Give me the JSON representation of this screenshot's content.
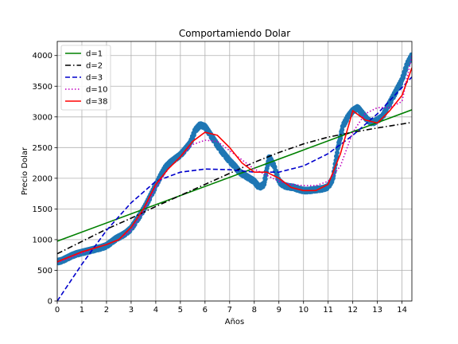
{
  "chart_data": {
    "type": "scatter",
    "title": "Comportamiendo Dolar",
    "xlabel": "Años",
    "ylabel": "Precio Dolar",
    "xlim": [
      0,
      14.4
    ],
    "ylim": [
      0,
      4230
    ],
    "xticks": [
      0,
      1,
      2,
      3,
      4,
      5,
      6,
      7,
      8,
      9,
      10,
      11,
      12,
      13,
      14
    ],
    "yticks": [
      0,
      500,
      1000,
      1500,
      2000,
      2500,
      3000,
      3500,
      4000
    ],
    "grid": true,
    "legend_position": "top-left",
    "data_series": {
      "color": "#1f77b4",
      "x": [
        0.0,
        0.2,
        0.4,
        0.6,
        0.8,
        1.0,
        1.2,
        1.4,
        1.6,
        1.8,
        2.0,
        2.2,
        2.4,
        2.6,
        2.8,
        3.0,
        3.2,
        3.4,
        3.6,
        3.8,
        4.0,
        4.2,
        4.4,
        4.6,
        4.8,
        5.0,
        5.2,
        5.4,
        5.6,
        5.8,
        6.0,
        6.2,
        6.4,
        6.6,
        6.8,
        7.0,
        7.2,
        7.4,
        7.6,
        7.8,
        8.0,
        8.2,
        8.4,
        8.6,
        8.8,
        9.0,
        9.2,
        9.4,
        9.6,
        9.8,
        10.0,
        10.2,
        10.4,
        10.6,
        10.8,
        11.0,
        11.2,
        11.4,
        11.6,
        11.8,
        12.0,
        12.2,
        12.4,
        12.6,
        12.8,
        13.0,
        13.2,
        13.4,
        13.6,
        13.8,
        14.0,
        14.2,
        14.4
      ],
      "y": [
        640,
        660,
        700,
        740,
        770,
        790,
        810,
        830,
        850,
        870,
        900,
        960,
        1020,
        1060,
        1110,
        1180,
        1300,
        1420,
        1560,
        1720,
        1880,
        2040,
        2180,
        2260,
        2320,
        2380,
        2470,
        2570,
        2780,
        2870,
        2840,
        2720,
        2600,
        2480,
        2380,
        2280,
        2200,
        2100,
        2050,
        2000,
        1950,
        1850,
        1900,
        2350,
        2200,
        1950,
        1880,
        1860,
        1850,
        1820,
        1800,
        1800,
        1810,
        1820,
        1830,
        1860,
        2000,
        2500,
        2850,
        3000,
        3100,
        3150,
        3050,
        2950,
        2900,
        2950,
        3000,
        3150,
        3300,
        3450,
        3600,
        3850,
        4000
      ]
    },
    "series": [
      {
        "name": "d=1",
        "color": "#008000",
        "style": "solid",
        "x": [
          0,
          14.4
        ],
        "y": [
          975,
          3115
        ]
      },
      {
        "name": "d=2",
        "color": "#000000",
        "style": "dashdot",
        "x": [
          0,
          1,
          2,
          3,
          4,
          5,
          6,
          7,
          8,
          9,
          10,
          11,
          12,
          13,
          14.4
        ],
        "y": [
          770,
          970,
          1170,
          1350,
          1540,
          1720,
          1900,
          2080,
          2260,
          2420,
          2560,
          2670,
          2750,
          2820,
          2910
        ]
      },
      {
        "name": "d=3",
        "color": "#0000cc",
        "style": "dashed",
        "x": [
          0,
          0.5,
          1,
          2,
          3,
          4,
          5,
          6,
          7,
          8,
          9,
          10,
          11,
          12,
          13,
          14.4
        ],
        "y": [
          0,
          300,
          600,
          1150,
          1600,
          1950,
          2100,
          2150,
          2140,
          2100,
          2100,
          2200,
          2400,
          2700,
          3050,
          3650
        ]
      },
      {
        "name": "d=10",
        "color": "#bf00bf",
        "style": "dotted",
        "x": [
          0,
          0.5,
          1,
          1.5,
          2,
          2.5,
          3,
          3.5,
          4,
          4.5,
          5,
          5.5,
          6,
          6.5,
          7,
          7.5,
          8,
          8.5,
          9,
          9.5,
          10,
          10.5,
          11,
          11.5,
          12,
          12.5,
          13,
          13.5,
          14,
          14.4
        ],
        "y": [
          630,
          700,
          780,
          860,
          920,
          1000,
          1150,
          1450,
          1850,
          2150,
          2350,
          2550,
          2620,
          2600,
          2450,
          2300,
          2150,
          2050,
          1950,
          1900,
          1880,
          1880,
          1950,
          2200,
          2750,
          3050,
          3150,
          3150,
          3250,
          4000
        ]
      },
      {
        "name": "d=38",
        "color": "#ff0000",
        "style": "solid",
        "x": [
          0,
          0.5,
          1,
          1.5,
          2,
          2.5,
          3,
          3.5,
          4,
          4.5,
          5,
          5.5,
          6,
          6.5,
          7,
          7.5,
          8,
          8.5,
          9,
          9.5,
          10,
          10.5,
          11,
          11.5,
          12,
          12.5,
          13,
          13.5,
          14,
          14.4
        ],
        "y": [
          640,
          720,
          800,
          860,
          920,
          1000,
          1200,
          1500,
          1900,
          2150,
          2350,
          2600,
          2750,
          2700,
          2500,
          2250,
          2100,
          2100,
          2000,
          1850,
          1800,
          1800,
          1900,
          2400,
          3100,
          2950,
          2900,
          3100,
          3350,
          3800
        ]
      }
    ]
  }
}
